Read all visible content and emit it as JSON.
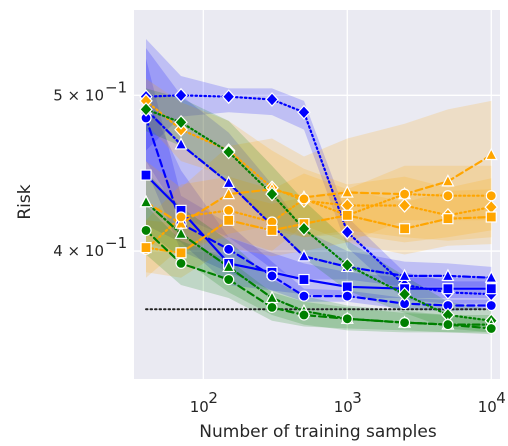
{
  "chart_data": {
    "type": "line",
    "xlabel": "Number of training samples",
    "ylabel": "Risk",
    "xscale": "log",
    "yscale": "log",
    "xlim": [
      33,
      11500
    ],
    "ylim": [
      0.333,
      0.565
    ],
    "grid": true,
    "background": "#eaeaf2",
    "x": [
      40,
      70,
      150,
      300,
      500,
      1000,
      2500,
      5000,
      10000
    ],
    "x_tick_labels": [
      {
        "base": "10",
        "exp": "2",
        "value": 100
      },
      {
        "base": "10",
        "exp": "3",
        "value": 1000
      },
      {
        "base": "10",
        "exp": "4",
        "value": 10000
      }
    ],
    "y_tick_labels": [
      {
        "mant": "5",
        "times": "×",
        "base": "10",
        "exp": "−1",
        "value": 0.5
      },
      {
        "mant": "4",
        "times": "×",
        "base": "10",
        "exp": "−1",
        "value": 0.4
      }
    ],
    "baseline": {
      "value": 0.368,
      "color": "#222222",
      "style": "dotted"
    },
    "series": [
      {
        "color": "#0000ff",
        "marker": "diamond",
        "dash": "dotted",
        "values": [
          0.499,
          0.5,
          0.499,
          0.497,
          0.488,
          0.411,
          0.381,
          0.377,
          0.376
        ],
        "band_low": [
          0.462,
          0.485,
          0.488,
          0.486,
          0.476,
          0.402,
          0.373,
          0.371,
          0.371
        ],
        "band_high": [
          0.542,
          0.514,
          0.505,
          0.505,
          0.496,
          0.42,
          0.388,
          0.383,
          0.383
        ]
      },
      {
        "color": "#0000ff",
        "marker": "triangle",
        "dash": "dashdot",
        "values": [
          0.49,
          0.466,
          0.441,
          0.415,
          0.397,
          0.391,
          0.386,
          0.386,
          0.385
        ],
        "band_low": [
          0.455,
          0.42,
          0.408,
          0.39,
          0.384,
          0.384,
          0.38,
          0.38,
          0.38
        ],
        "band_high": [
          0.535,
          0.5,
          0.474,
          0.44,
          0.412,
          0.4,
          0.394,
          0.393,
          0.391
        ]
      },
      {
        "color": "#0000ff",
        "marker": "square",
        "dash": "solid",
        "values": [
          0.446,
          0.424,
          0.393,
          0.388,
          0.384,
          0.38,
          0.379,
          0.379,
          0.379
        ],
        "band_low": [
          0.415,
          0.405,
          0.381,
          0.378,
          0.376,
          0.374,
          0.374,
          0.374,
          0.374
        ],
        "band_high": [
          0.5,
          0.449,
          0.408,
          0.399,
          0.393,
          0.388,
          0.385,
          0.385,
          0.385
        ]
      },
      {
        "color": "#0000ff",
        "marker": "circle",
        "dash": "dashed",
        "values": [
          0.484,
          0.416,
          0.401,
          0.386,
          0.375,
          0.375,
          0.371,
          0.37,
          0.37
        ],
        "band_low": [
          0.45,
          0.4,
          0.388,
          0.378,
          0.372,
          0.372,
          0.368,
          0.367,
          0.368
        ],
        "band_high": [
          0.527,
          0.433,
          0.416,
          0.394,
          0.379,
          0.378,
          0.374,
          0.373,
          0.373
        ]
      },
      {
        "color": "#ffa500",
        "marker": "diamond",
        "dash": "dotted",
        "values": [
          0.496,
          0.476,
          0.462,
          0.438,
          0.43,
          0.427,
          0.427,
          0.421,
          0.426
        ],
        "band_low": [
          0.48,
          0.455,
          0.445,
          0.412,
          0.408,
          0.412,
          0.408,
          0.406,
          0.408
        ],
        "band_high": [
          0.512,
          0.495,
          0.482,
          0.462,
          0.45,
          0.44,
          0.445,
          0.438,
          0.444
        ]
      },
      {
        "color": "#ffa500",
        "marker": "triangle",
        "dash": "dashed",
        "values": [
          0.429,
          0.416,
          0.434,
          0.437,
          0.432,
          0.435,
          0.434,
          0.442,
          0.459
        ],
        "band_low": [
          0.405,
          0.398,
          0.41,
          0.415,
          0.408,
          0.41,
          0.405,
          0.408,
          0.412
        ],
        "band_high": [
          0.455,
          0.438,
          0.465,
          0.47,
          0.458,
          0.47,
          0.48,
          0.49,
          0.496
        ]
      },
      {
        "color": "#ffa500",
        "marker": "circle",
        "dash": "dotted",
        "values": [
          0.401,
          0.42,
          0.424,
          0.417,
          0.431,
          0.421,
          0.434,
          0.433,
          0.433
        ],
        "band_low": [
          0.385,
          0.402,
          0.408,
          0.4,
          0.415,
          0.405,
          0.418,
          0.418,
          0.418
        ],
        "band_high": [
          0.418,
          0.44,
          0.445,
          0.437,
          0.447,
          0.437,
          0.452,
          0.452,
          0.452
        ]
      },
      {
        "color": "#ffa500",
        "marker": "square",
        "dash": "dashdot",
        "values": [
          0.402,
          0.399,
          0.418,
          0.412,
          0.416,
          0.421,
          0.413,
          0.419,
          0.42
        ],
        "band_low": [
          0.388,
          0.385,
          0.402,
          0.397,
          0.4,
          0.405,
          0.398,
          0.403,
          0.404
        ],
        "band_high": [
          0.418,
          0.416,
          0.435,
          0.428,
          0.432,
          0.437,
          0.429,
          0.436,
          0.437
        ]
      },
      {
        "color": "#008000",
        "marker": "diamond",
        "dash": "dotted",
        "values": [
          0.49,
          0.481,
          0.461,
          0.434,
          0.413,
          0.392,
          0.376,
          0.365,
          0.362
        ],
        "band_low": [
          0.475,
          0.465,
          0.44,
          0.415,
          0.396,
          0.378,
          0.366,
          0.358,
          0.356
        ],
        "band_high": [
          0.505,
          0.498,
          0.482,
          0.452,
          0.43,
          0.406,
          0.386,
          0.372,
          0.368
        ]
      },
      {
        "color": "#008000",
        "marker": "triangle",
        "dash": "dashdot",
        "values": [
          0.429,
          0.41,
          0.391,
          0.374,
          0.367,
          0.363,
          0.361,
          0.36,
          0.36
        ],
        "band_low": [
          0.412,
          0.396,
          0.377,
          0.365,
          0.36,
          0.357,
          0.356,
          0.356,
          0.356
        ],
        "band_high": [
          0.448,
          0.426,
          0.406,
          0.384,
          0.375,
          0.37,
          0.367,
          0.365,
          0.365
        ]
      },
      {
        "color": "#008000",
        "marker": "circle",
        "dash": "dashed",
        "values": [
          0.412,
          0.393,
          0.384,
          0.369,
          0.365,
          0.363,
          0.361,
          0.36,
          0.358
        ],
        "band_low": [
          0.398,
          0.381,
          0.374,
          0.362,
          0.359,
          0.358,
          0.357,
          0.356,
          0.355
        ],
        "band_high": [
          0.427,
          0.406,
          0.395,
          0.377,
          0.372,
          0.369,
          0.366,
          0.365,
          0.362
        ]
      }
    ]
  }
}
